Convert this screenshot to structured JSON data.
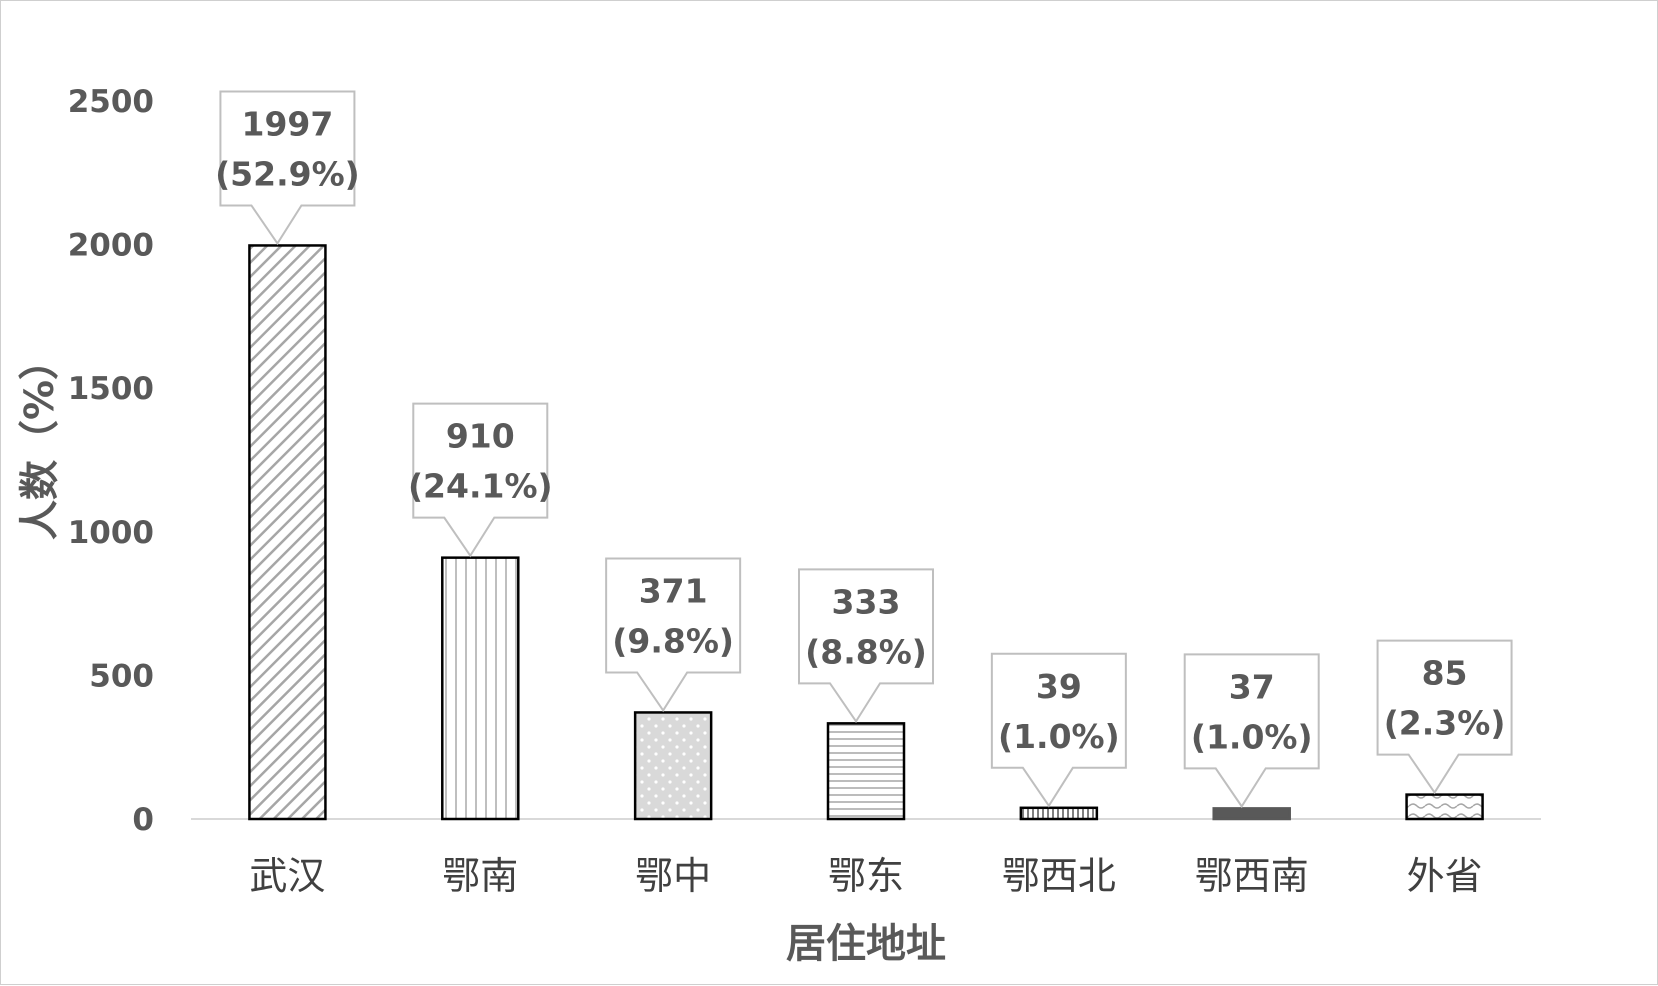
{
  "chart_data": {
    "type": "bar",
    "xlabel": "居住地址",
    "ylabel": "人数（%）",
    "ylim": [
      0,
      2500
    ],
    "yticks": [
      0,
      500,
      1000,
      1500,
      2000,
      2500
    ],
    "grid": false,
    "categories": [
      "武汉",
      "鄂南",
      "鄂中",
      "鄂东",
      "鄂西北",
      "鄂西南",
      "外省"
    ],
    "values": [
      1997,
      910,
      371,
      333,
      39,
      37,
      85
    ],
    "data_labels": [
      {
        "count": "1997",
        "percent": "(52.9%)"
      },
      {
        "count": "910",
        "percent": "(24.1%)"
      },
      {
        "count": "371",
        "percent": "(9.8%)"
      },
      {
        "count": "333",
        "percent": "(8.8%)"
      },
      {
        "count": "39",
        "percent": "(1.0%)"
      },
      {
        "count": "37",
        "percent": "(1.0%)"
      },
      {
        "count": "85",
        "percent": "(2.3%)"
      }
    ],
    "bar_patterns": [
      "diagonal",
      "vertical",
      "dots",
      "horizontal",
      "vertical-dense",
      "solid",
      "wave"
    ],
    "colors": {
      "axis": "#d9d9d9",
      "bar_outline": "#000000",
      "pattern": "#a6a6a6",
      "solid_fill": "#595959",
      "text": "#595959"
    }
  }
}
